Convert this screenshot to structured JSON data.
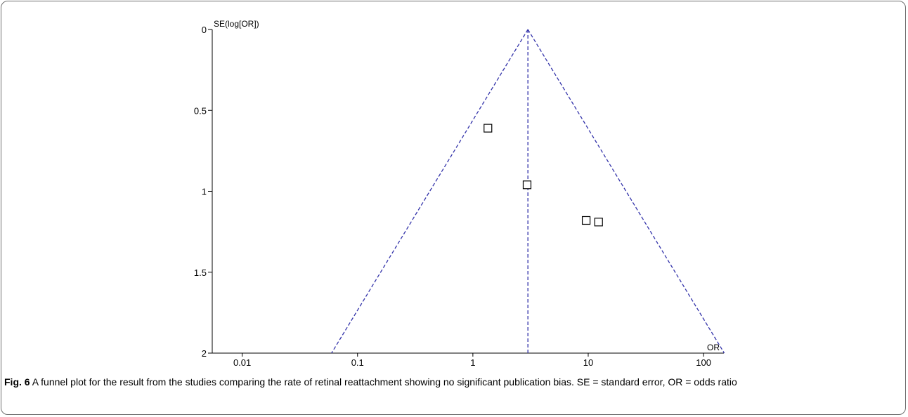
{
  "chart_data": {
    "type": "scatter",
    "x_scale": "log",
    "y_axis_inverted": true,
    "xlabel": "OR",
    "ylabel": "SE(log[OR])",
    "xticks": [
      0.01,
      0.1,
      1,
      10,
      100
    ],
    "xtick_labels": [
      "0.01",
      "0.1",
      "1",
      "10",
      "100"
    ],
    "yticks": [
      0,
      0.5,
      1,
      1.5,
      2
    ],
    "ytick_labels": [
      "0",
      "0.5",
      "1",
      "1.5",
      "2"
    ],
    "xlim": [
      0.0055,
      150
    ],
    "ylim": [
      0,
      2
    ],
    "grid": false,
    "pooled_or": 3.0,
    "points": [
      {
        "x": 1.35,
        "y": 0.61
      },
      {
        "x": 2.95,
        "y": 0.96
      },
      {
        "x": 9.6,
        "y": 1.18
      },
      {
        "x": 12.3,
        "y": 1.19
      }
    ],
    "point_marker": "hollow-square",
    "funnel_color": "#3333aa"
  },
  "caption": {
    "label": "Fig. 6",
    "text": "A funnel plot for the result from the studies comparing the rate of retinal reattachment showing no significant publication bias. SE = standard error, OR = odds ratio"
  }
}
